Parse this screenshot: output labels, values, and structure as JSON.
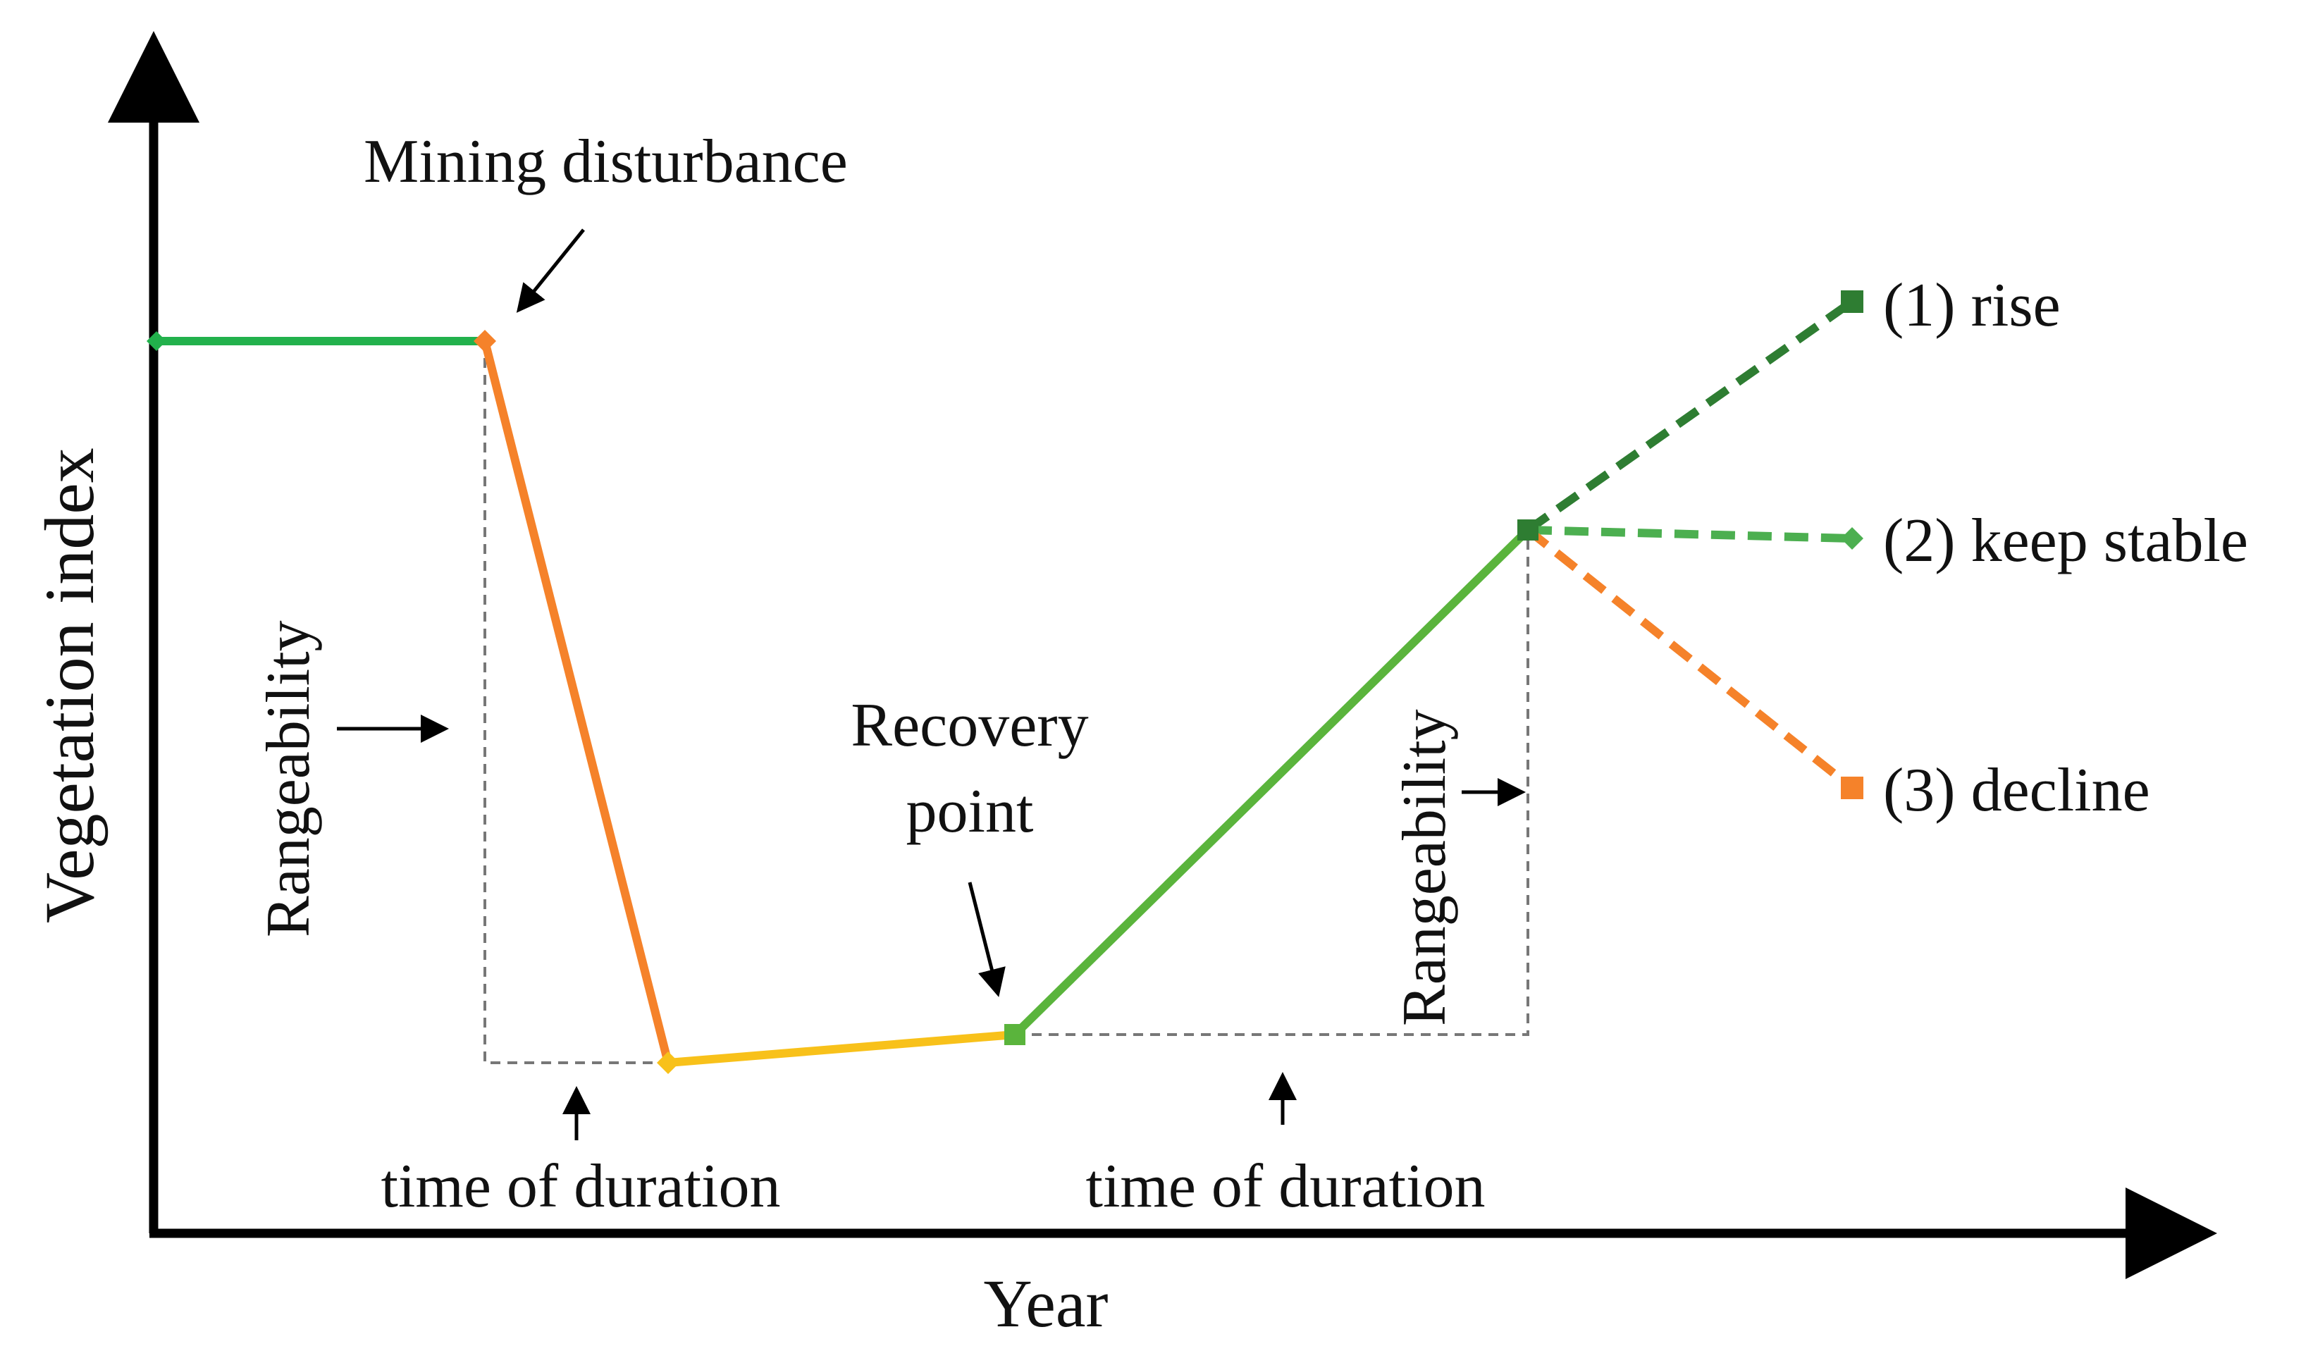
{
  "colors": {
    "baseline_green": "#22b14c",
    "disturbance_orange": "#f5822a",
    "low_yellow": "#f8c11a",
    "recovery_green": "#5ab43c",
    "rise_dark_green": "#2e7d32",
    "stable_green": "#4caf50",
    "decline_orange": "#f5822a",
    "axis": "#000000",
    "guide": "#777777"
  },
  "axes": {
    "x_label": "Year",
    "y_label": "Vegetation index"
  },
  "annotations": {
    "mining_disturbance": "Mining disturbance",
    "recovery_point_line1": "Recovery",
    "recovery_point_line2": "point",
    "rangeability_left": "Rangeability",
    "rangeability_right": "Rangeability",
    "duration_left": "time of duration",
    "duration_right": "time of duration"
  },
  "outcomes": {
    "rise": "(1) rise",
    "keep_stable": "(2) keep stable",
    "decline": "(3) decline"
  },
  "stages": [
    "baseline",
    "mining disturbance",
    "low level",
    "recovery",
    "rise",
    "keep stable",
    "decline"
  ]
}
